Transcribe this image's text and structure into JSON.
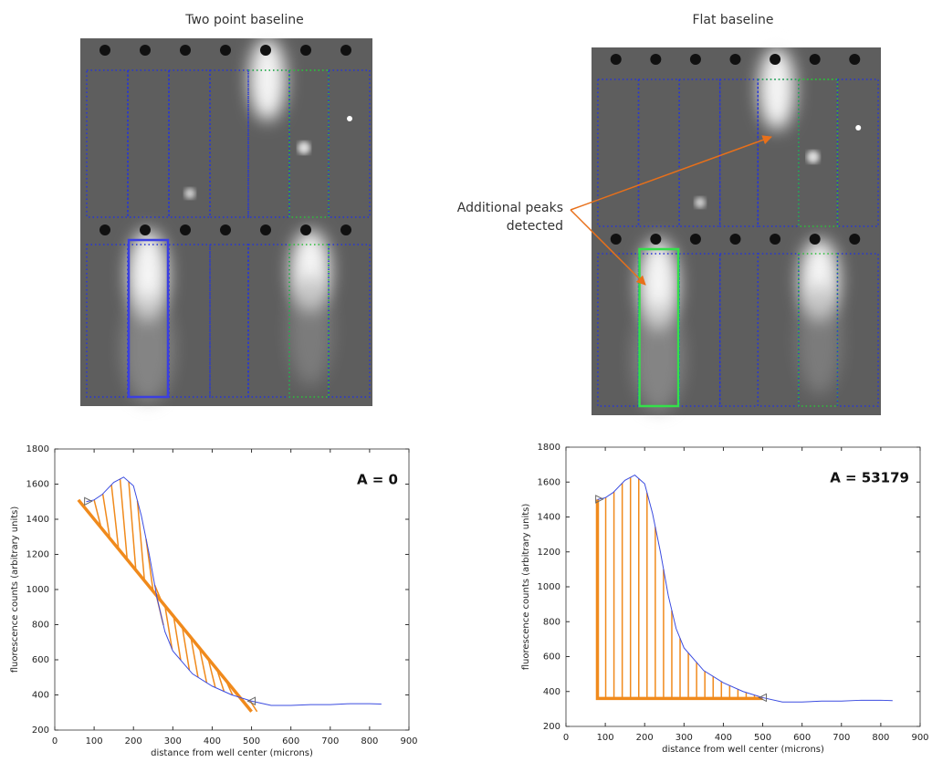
{
  "panels": [
    {
      "title": "Two point baseline"
    },
    {
      "title": "Flat baseline"
    }
  ],
  "annotation": {
    "lines": [
      "Additional peaks",
      "detected"
    ],
    "color": "#e8701a"
  },
  "chart_data": [
    {
      "type": "line",
      "annotation": "A = 0",
      "xlabel": "distance from well center (microns)",
      "ylabel": "fluorescence counts (arbitrary units)",
      "x": [
        80,
        100,
        120,
        150,
        175,
        200,
        220,
        240,
        260,
        280,
        300,
        350,
        400,
        450,
        500,
        550,
        600,
        650,
        700,
        750,
        800,
        830
      ],
      "series": [
        {
          "color": "#3b4ce0",
          "values": [
            1500,
            1510,
            1540,
            1610,
            1640,
            1590,
            1420,
            1200,
            950,
            760,
            650,
            520,
            450,
            400,
            365,
            340,
            340,
            345,
            345,
            350,
            350,
            348
          ]
        }
      ],
      "baseline": {
        "x": [
          60,
          500
        ],
        "y": [
          1510,
          305
        ],
        "color": "#f08a1c"
      },
      "hatch": "diagonal",
      "xlim": [
        0,
        900
      ],
      "ylim": [
        200,
        1800
      ],
      "xticks": [
        0,
        100,
        200,
        300,
        400,
        500,
        600,
        700,
        800,
        900
      ],
      "yticks": [
        200,
        400,
        600,
        800,
        1000,
        1200,
        1400,
        1600,
        1800
      ]
    },
    {
      "type": "line",
      "annotation": "A = 53179",
      "xlabel": "distance from well center (microns)",
      "ylabel": "fluorescence counts (arbitrary units)",
      "x": [
        80,
        100,
        120,
        150,
        175,
        200,
        220,
        240,
        260,
        280,
        300,
        350,
        400,
        450,
        500,
        550,
        600,
        650,
        700,
        750,
        800,
        830
      ],
      "series": [
        {
          "color": "#3b4ce0",
          "values": [
            1500,
            1510,
            1540,
            1610,
            1640,
            1590,
            1420,
            1200,
            950,
            760,
            650,
            520,
            450,
            400,
            365,
            340,
            340,
            345,
            345,
            350,
            350,
            348
          ]
        }
      ],
      "baseline": {
        "x": [
          80,
          80,
          500
        ],
        "y": [
          1500,
          360,
          360
        ],
        "color": "#f08a1c"
      },
      "hatch": "vertical",
      "xlim": [
        0,
        900
      ],
      "ylim": [
        200,
        1800
      ],
      "xticks": [
        0,
        100,
        200,
        300,
        400,
        500,
        600,
        700,
        800,
        900
      ],
      "yticks": [
        200,
        400,
        600,
        800,
        1000,
        1200,
        1400,
        1600,
        1800
      ]
    }
  ]
}
